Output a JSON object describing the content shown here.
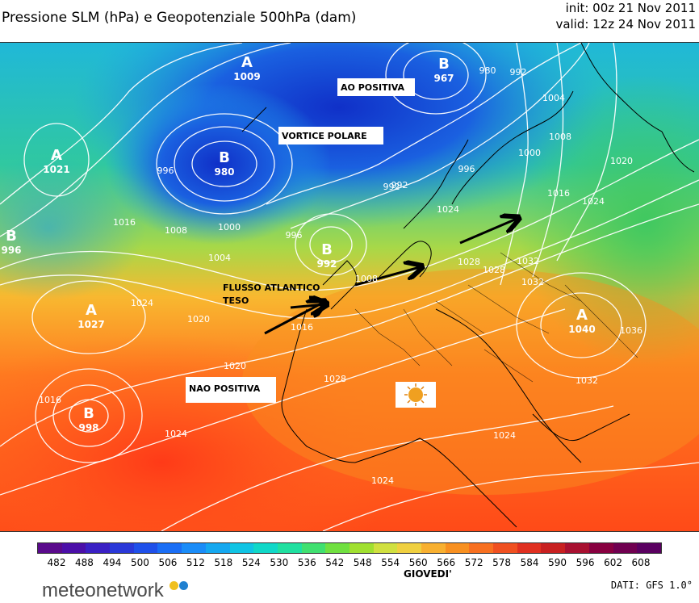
{
  "title": "Pressione SLM (hPa) e Geopotenziale 500hPa (dam)",
  "init": "init: 00z 21 Nov 2011",
  "valid": "valid: 12z 24 Nov 2011",
  "colors": {
    "low_geo": "#1030c0",
    "mid_geo": "#3cc060",
    "high_geo": "#ff5020",
    "isobar": "#ffffff",
    "land_border": "#000000"
  },
  "annotations": {
    "ao": "AO POSITIVA",
    "vortex": "VORTICE POLARE",
    "atlantic_1": "FLUSSO ATLANTICO",
    "atlantic_2": "TESO",
    "nao": "NAO POSITIVA"
  },
  "centers": [
    {
      "type": "A",
      "value": "1009"
    },
    {
      "type": "B",
      "value": "967"
    },
    {
      "type": "B",
      "value": "980"
    },
    {
      "type": "A",
      "value": "1021"
    },
    {
      "type": "B",
      "value": "996"
    },
    {
      "type": "B",
      "value": "992"
    },
    {
      "type": "A",
      "value": "1027"
    },
    {
      "type": "B",
      "value": "998"
    },
    {
      "type": "A",
      "value": "1040"
    }
  ],
  "isobar_labels": [
    "980",
    "992",
    "1004",
    "1008",
    "1000",
    "992",
    "996",
    "1008",
    "1016",
    "1020",
    "1024",
    "1016",
    "1008",
    "1004",
    "1000",
    "996",
    "996",
    "992",
    "1016",
    "1020",
    "1024",
    "1028",
    "1032",
    "1036",
    "1032",
    "1024",
    "1024",
    "1028",
    "1020",
    "1024",
    "1016",
    "1024",
    "1028",
    "1032"
  ],
  "colorbar": {
    "ticks": [
      "482",
      "488",
      "494",
      "500",
      "506",
      "512",
      "518",
      "524",
      "530",
      "536",
      "542",
      "548",
      "554",
      "560",
      "566",
      "572",
      "578",
      "584",
      "590",
      "596",
      "602",
      "608"
    ],
    "colors": [
      "#5a0a8c",
      "#4b0fa8",
      "#3a20c4",
      "#2a38d8",
      "#1f50ea",
      "#1a6ef5",
      "#1a8cf8",
      "#15a8f0",
      "#10c4e4",
      "#10d8c8",
      "#20e0a0",
      "#40e070",
      "#70e040",
      "#a0e030",
      "#d0e040",
      "#f0d040",
      "#f8b030",
      "#f89020",
      "#f87020",
      "#f05020",
      "#e03020",
      "#c82020",
      "#a81030",
      "#880040",
      "#700050",
      "#5a0060"
    ],
    "caption": "GIOVEDI'"
  },
  "logo_text": "meteonetwork",
  "logo_dot_colors": [
    "#f0c020",
    "#2080d0"
  ],
  "source": "DATI: GFS 1.0°"
}
